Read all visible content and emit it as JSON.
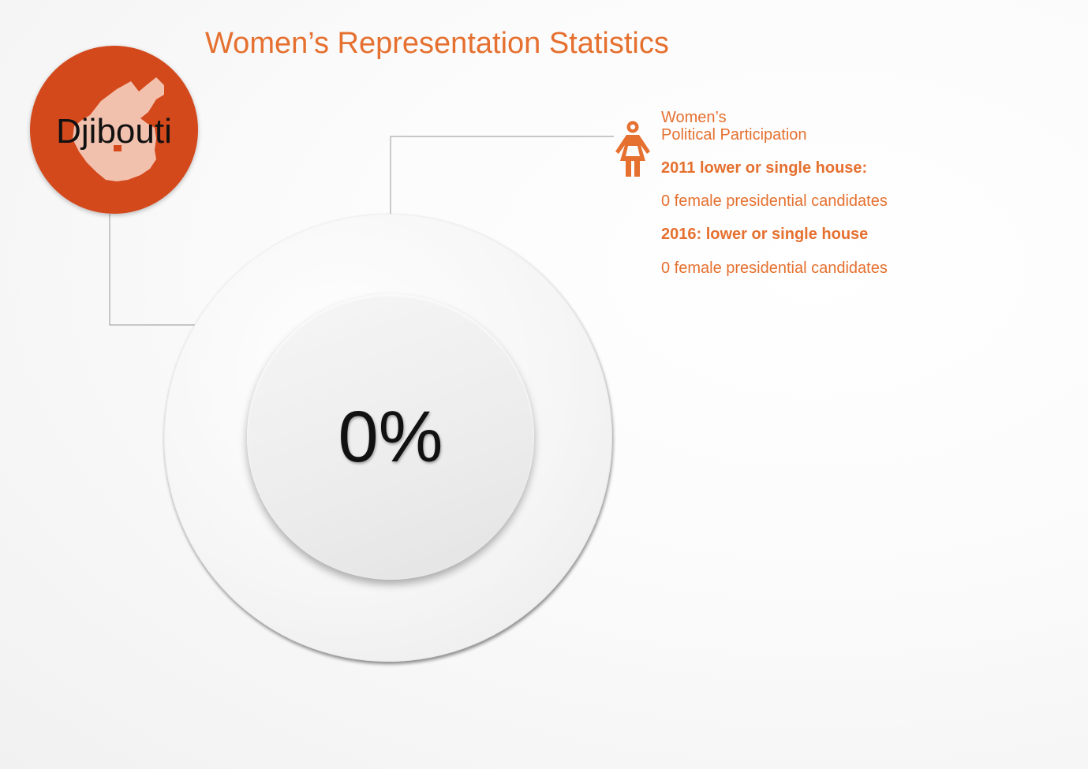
{
  "title": "Women’s Representation Statistics",
  "country": {
    "name": "Djibouti",
    "map_icon": "djibouti-map-icon"
  },
  "stat": {
    "percent": "0%"
  },
  "participation": {
    "icon": "woman-icon",
    "heading_line1": "Women’s",
    "heading_line2": "Political Participation",
    "label_2011": "2011 lower or single house:",
    "value_2011": "0 female presidential candidates",
    "label_2016": "2016: lower or single house",
    "value_2016": "0 female presidential candidates"
  },
  "colors": {
    "accent": "#e5702f",
    "badge": "#d4491c",
    "map_fill": "#f3c8b6"
  }
}
